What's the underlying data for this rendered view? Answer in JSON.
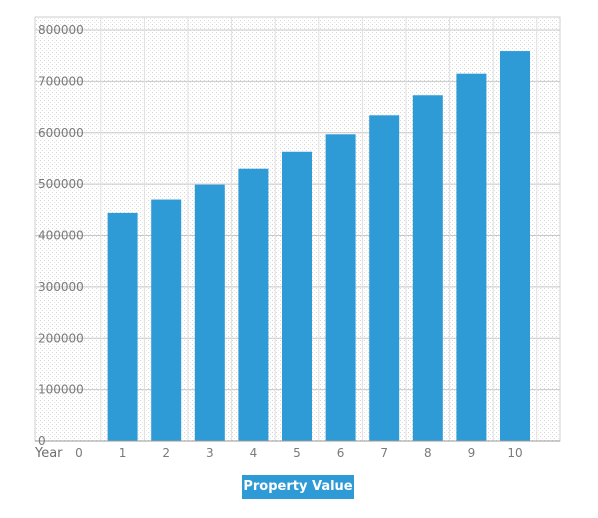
{
  "chart_data": {
    "type": "bar",
    "xlabel": "Year",
    "categories": [
      "1",
      "2",
      "3",
      "4",
      "5",
      "6",
      "7",
      "8",
      "9",
      "10"
    ],
    "x_ticks": [
      "0",
      "1",
      "2",
      "3",
      "4",
      "5",
      "6",
      "7",
      "8",
      "9",
      "10"
    ],
    "series": [
      {
        "name": "Property Value",
        "color": "#2f9bd6",
        "values": [
          444000,
          470000,
          499000,
          530000,
          563000,
          597000,
          634000,
          673000,
          715000,
          759000
        ]
      }
    ],
    "ylim": [
      0,
      800000
    ],
    "y_ticks": [
      "0",
      "100000",
      "200000",
      "300000",
      "400000",
      "500000",
      "600000",
      "700000",
      "800000"
    ],
    "grid": true,
    "legend_position": "bottom-center"
  },
  "legend": {
    "label": "Property Value"
  }
}
